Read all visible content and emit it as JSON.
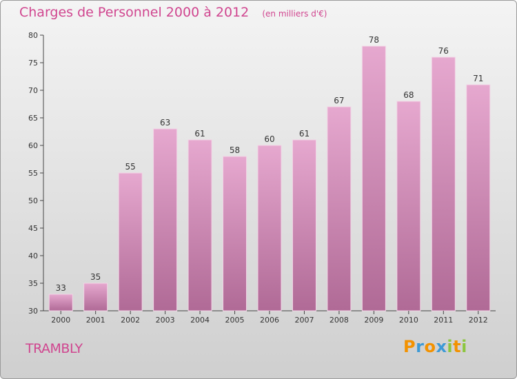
{
  "title": "Charges de Personnel 2000 à 2012",
  "unit": "(en milliers d'€)",
  "commune": "TRAMBLY",
  "logo": {
    "letters": [
      "P",
      "r",
      "o",
      "x",
      "i",
      "t",
      "i"
    ],
    "colors": [
      "#f39200",
      "#3d9ad6",
      "#f39200",
      "#3d9ad6",
      "#8cc63f",
      "#f39200",
      "#8cc63f"
    ]
  },
  "colors": {
    "title": "#d0458f",
    "bar_top": "#e6a8cf",
    "bar_bottom": "#b06a96"
  },
  "chart_data": {
    "type": "bar",
    "categories": [
      "2000",
      "2001",
      "2002",
      "2003",
      "2004",
      "2005",
      "2006",
      "2007",
      "2008",
      "2009",
      "2010",
      "2011",
      "2012"
    ],
    "values": [
      33,
      35,
      55,
      63,
      61,
      58,
      60,
      61,
      67,
      78,
      68,
      76,
      71
    ],
    "ylim": [
      30,
      80
    ],
    "yticks": [
      30,
      35,
      40,
      45,
      50,
      55,
      60,
      65,
      70,
      75,
      80
    ],
    "data_labels": true,
    "grid": false
  }
}
